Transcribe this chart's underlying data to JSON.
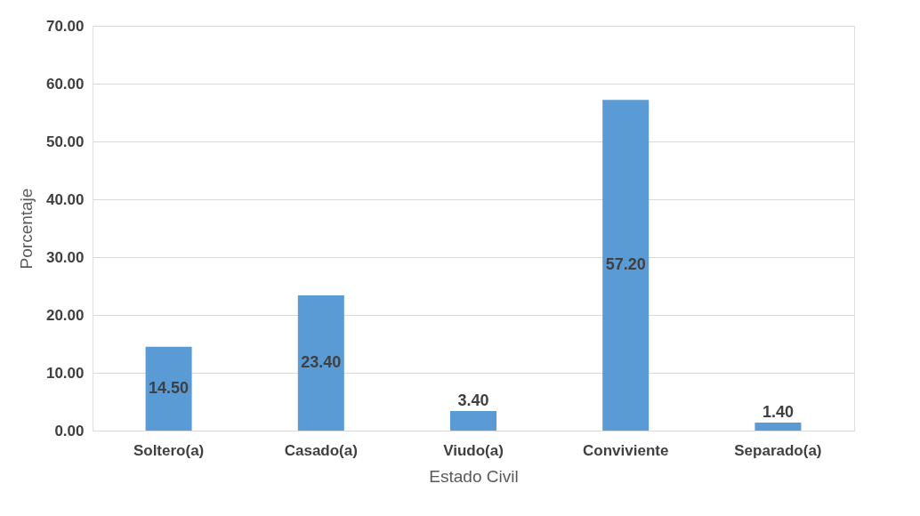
{
  "chart_data": {
    "type": "bar",
    "xlabel": "Estado Civil",
    "ylabel": "Porcentaje",
    "categories": [
      "Soltero(a)",
      "Casado(a)",
      "Viudo(a)",
      "Conviviente",
      "Separado(a)"
    ],
    "values": [
      14.5,
      23.4,
      3.4,
      57.2,
      1.4
    ],
    "value_labels": [
      "14.50",
      "23.40",
      "3.40",
      "57.20",
      "1.40"
    ],
    "color": "#5b9bd5",
    "ylim": [
      0,
      70
    ],
    "yticks": [
      {
        "value": 0,
        "label": "0.00"
      },
      {
        "value": 10,
        "label": "10.00"
      },
      {
        "value": 20,
        "label": "20.00"
      },
      {
        "value": 30,
        "label": "30.00"
      },
      {
        "value": 40,
        "label": "40.00"
      },
      {
        "value": 50,
        "label": "50.00"
      },
      {
        "value": 60,
        "label": "60.00"
      },
      {
        "value": 70,
        "label": "70.00"
      }
    ],
    "grid": "y"
  }
}
